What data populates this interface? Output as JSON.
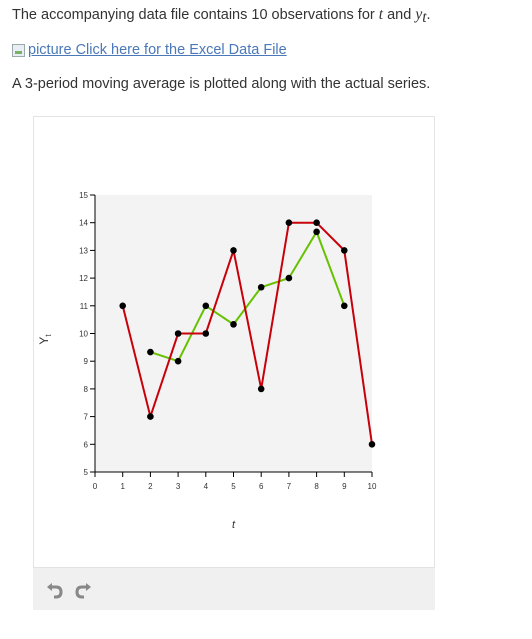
{
  "question": {
    "intro_text": "The accompanying data file contains 10 observations for ",
    "var_t": "t",
    "and_text": " and ",
    "var_y": "y",
    "var_y_sub": "t",
    "period": ".",
    "link_alt": "picture",
    "link_text": "Click here for the Excel Data File",
    "description": "A 3-period moving average is plotted along with the actual series."
  },
  "chart_data": {
    "type": "line",
    "xlabel": "t",
    "ylabel": "Y",
    "ylabel_sub": "t",
    "xlim": [
      0,
      10
    ],
    "ylim": [
      5,
      15
    ],
    "x_ticks": [
      "0",
      "1",
      "2",
      "3",
      "4",
      "5",
      "6",
      "7",
      "8",
      "9",
      "10"
    ],
    "y_ticks": [
      "5",
      "6",
      "7",
      "8",
      "9",
      "10",
      "11",
      "12",
      "13",
      "14",
      "15"
    ],
    "series": [
      {
        "color": "#c8000a",
        "x": [
          1,
          2,
          3,
          4,
          5,
          6,
          7,
          8,
          9,
          10
        ],
        "values": [
          11,
          7,
          10,
          10,
          13,
          8,
          14,
          14,
          13,
          6
        ]
      },
      {
        "color": "#66c100",
        "x": [
          2,
          3,
          4,
          5,
          6,
          7,
          8,
          9
        ],
        "values": [
          9.33,
          9,
          11,
          10.33,
          11.67,
          12,
          13.67,
          11
        ]
      }
    ]
  },
  "toolbar": {
    "undo_icon": "undo-icon",
    "redo_icon": "redo-icon"
  }
}
